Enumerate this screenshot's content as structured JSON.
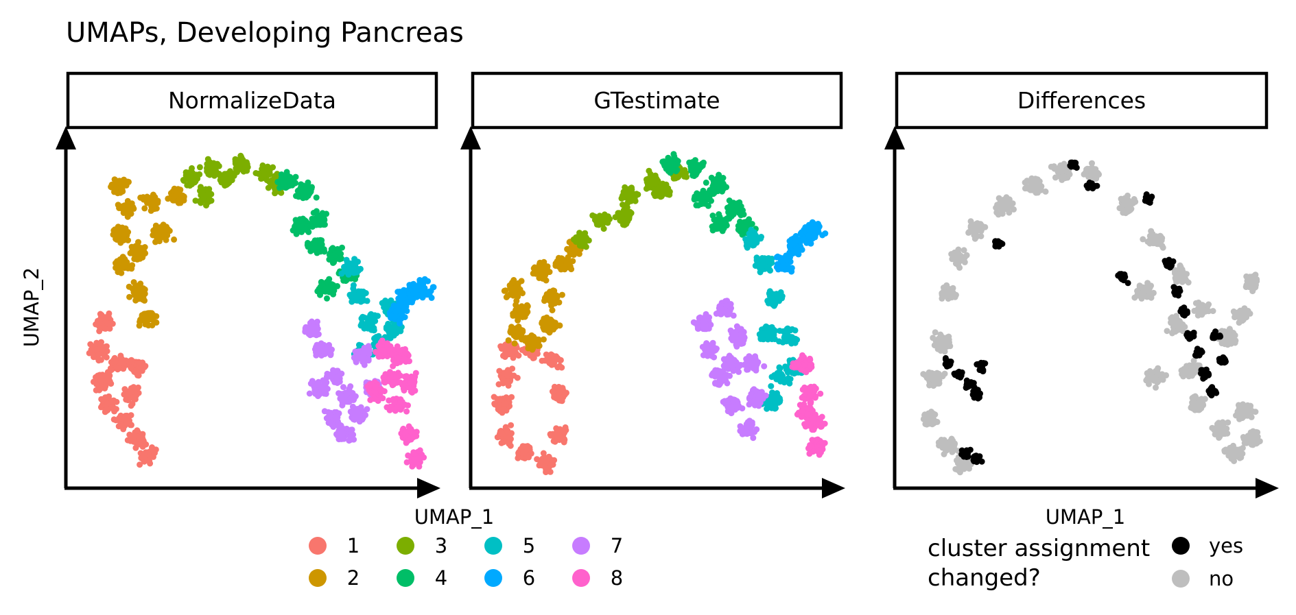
{
  "title": "UMAPs, Developing Pancreas",
  "panels": [
    {
      "label": "NormalizeData"
    },
    {
      "label": "GTestimate"
    },
    {
      "label": "Differences"
    }
  ],
  "xlabel": "UMAP_1",
  "ylabel": "UMAP_2",
  "cluster_legend": {
    "items": [
      {
        "label": "1",
        "color": "#F8766D"
      },
      {
        "label": "2",
        "color": "#CD9600"
      },
      {
        "label": "3",
        "color": "#7CAE00"
      },
      {
        "label": "4",
        "color": "#00BE67"
      },
      {
        "label": "5",
        "color": "#00BFC4"
      },
      {
        "label": "6",
        "color": "#00A9FF"
      },
      {
        "label": "7",
        "color": "#C77CFF"
      },
      {
        "label": "8",
        "color": "#FF61CC"
      }
    ]
  },
  "change_legend": {
    "title_line1": "cluster assignment",
    "title_line2": "changed?",
    "items": [
      {
        "label": "yes",
        "color": "#000000"
      },
      {
        "label": "no",
        "color": "#BEBEBE"
      }
    ]
  },
  "chart_data": {
    "type": "scatter",
    "facets": [
      "NormalizeData",
      "GTestimate",
      "Differences"
    ],
    "xlabel": "UMAP_1",
    "ylabel": "UMAP_2",
    "x_axis_ticks": false,
    "y_axis_ticks": false,
    "grid": false,
    "color_by": {
      "NormalizeData": "cluster",
      "GTestimate": "cluster",
      "Differences": "cluster assignment changed?"
    },
    "clusters": [
      "1",
      "2",
      "3",
      "4",
      "5",
      "6",
      "7",
      "8"
    ],
    "legend_position": "bottom",
    "regions": {
      "NormalizeData": {
        "1": [
          [
            0.08,
            0.46
          ],
          [
            0.06,
            0.38
          ],
          [
            0.07,
            0.29
          ],
          [
            0.09,
            0.22
          ],
          [
            0.13,
            0.17
          ],
          [
            0.17,
            0.12
          ],
          [
            0.2,
            0.07
          ],
          [
            0.15,
            0.25
          ],
          [
            0.17,
            0.33
          ],
          [
            0.12,
            0.34
          ]
        ],
        "2": [
          [
            0.12,
            0.86
          ],
          [
            0.14,
            0.79
          ],
          [
            0.12,
            0.72
          ],
          [
            0.13,
            0.63
          ],
          [
            0.17,
            0.55
          ],
          [
            0.2,
            0.47
          ],
          [
            0.24,
            0.72
          ],
          [
            0.28,
            0.83
          ],
          [
            0.21,
            0.81
          ],
          [
            0.17,
            0.66
          ]
        ],
        "3": [
          [
            0.32,
            0.88
          ],
          [
            0.38,
            0.91
          ],
          [
            0.46,
            0.92
          ],
          [
            0.53,
            0.9
          ],
          [
            0.56,
            0.86
          ],
          [
            0.42,
            0.88
          ],
          [
            0.36,
            0.83
          ]
        ],
        "4": [
          [
            0.59,
            0.87
          ],
          [
            0.64,
            0.84
          ],
          [
            0.68,
            0.76
          ],
          [
            0.72,
            0.66
          ],
          [
            0.76,
            0.6
          ],
          [
            0.63,
            0.74
          ],
          [
            0.67,
            0.68
          ],
          [
            0.7,
            0.56
          ]
        ],
        "5": [
          [
            0.77,
            0.62
          ],
          [
            0.79,
            0.54
          ],
          [
            0.82,
            0.46
          ],
          [
            0.85,
            0.4
          ],
          [
            0.8,
            0.37
          ],
          [
            0.88,
            0.5
          ],
          [
            0.89,
            0.44
          ]
        ],
        "6": [
          [
            0.92,
            0.53
          ],
          [
            0.95,
            0.55
          ],
          [
            0.97,
            0.56
          ],
          [
            0.9,
            0.49
          ]
        ],
        "7": [
          [
            0.66,
            0.44
          ],
          [
            0.69,
            0.38
          ],
          [
            0.72,
            0.3
          ],
          [
            0.76,
            0.24
          ],
          [
            0.75,
            0.14
          ],
          [
            0.79,
            0.19
          ],
          [
            0.83,
            0.27
          ],
          [
            0.8,
            0.36
          ],
          [
            0.72,
            0.18
          ],
          [
            0.68,
            0.27
          ]
        ],
        "8": [
          [
            0.86,
            0.38
          ],
          [
            0.88,
            0.3
          ],
          [
            0.9,
            0.22
          ],
          [
            0.93,
            0.13
          ],
          [
            0.95,
            0.06
          ],
          [
            0.84,
            0.26
          ],
          [
            0.91,
            0.36
          ],
          [
            0.93,
            0.28
          ]
        ]
      },
      "GTestimate": {
        "1": [
          [
            0.08,
            0.38
          ],
          [
            0.07,
            0.3
          ],
          [
            0.06,
            0.22
          ],
          [
            0.07,
            0.13
          ],
          [
            0.12,
            0.08
          ],
          [
            0.18,
            0.05
          ],
          [
            0.22,
            0.13
          ],
          [
            0.22,
            0.25
          ],
          [
            0.2,
            0.35
          ],
          [
            0.14,
            0.38
          ]
        ],
        "2": [
          [
            0.09,
            0.56
          ],
          [
            0.11,
            0.49
          ],
          [
            0.1,
            0.43
          ],
          [
            0.14,
            0.4
          ],
          [
            0.19,
            0.45
          ],
          [
            0.2,
            0.53
          ],
          [
            0.23,
            0.63
          ],
          [
            0.26,
            0.67
          ],
          [
            0.17,
            0.61
          ]
        ],
        "3": [
          [
            0.28,
            0.7
          ],
          [
            0.34,
            0.76
          ],
          [
            0.41,
            0.83
          ],
          [
            0.48,
            0.87
          ],
          [
            0.55,
            0.9
          ],
          [
            0.51,
            0.84
          ],
          [
            0.4,
            0.77
          ]
        ],
        "4": [
          [
            0.53,
            0.92
          ],
          [
            0.6,
            0.91
          ],
          [
            0.66,
            0.86
          ],
          [
            0.71,
            0.79
          ],
          [
            0.74,
            0.74
          ],
          [
            0.62,
            0.82
          ],
          [
            0.67,
            0.75
          ]
        ],
        "5": [
          [
            0.76,
            0.7
          ],
          [
            0.79,
            0.63
          ],
          [
            0.82,
            0.53
          ],
          [
            0.86,
            0.42
          ],
          [
            0.88,
            0.33
          ],
          [
            0.84,
            0.3
          ],
          [
            0.82,
            0.23
          ],
          [
            0.8,
            0.43
          ]
        ],
        "6": [
          [
            0.88,
            0.68
          ],
          [
            0.91,
            0.71
          ],
          [
            0.93,
            0.73
          ],
          [
            0.85,
            0.63
          ]
        ],
        "7": [
          [
            0.62,
            0.46
          ],
          [
            0.64,
            0.38
          ],
          [
            0.67,
            0.3
          ],
          [
            0.7,
            0.22
          ],
          [
            0.75,
            0.15
          ],
          [
            0.77,
            0.24
          ],
          [
            0.76,
            0.34
          ],
          [
            0.72,
            0.42
          ],
          [
            0.68,
            0.5
          ],
          [
            0.7,
            0.34
          ]
        ],
        "8": [
          [
            0.9,
            0.34
          ],
          [
            0.92,
            0.25
          ],
          [
            0.93,
            0.17
          ],
          [
            0.94,
            0.1
          ],
          [
            0.91,
            0.2
          ]
        ]
      },
      "Differences": {
        "no": [
          [
            0.1,
            0.4
          ],
          [
            0.08,
            0.3
          ],
          [
            0.07,
            0.18
          ],
          [
            0.12,
            0.1
          ],
          [
            0.16,
            0.05
          ],
          [
            0.12,
            0.55
          ],
          [
            0.15,
            0.65
          ],
          [
            0.2,
            0.73
          ],
          [
            0.28,
            0.8
          ],
          [
            0.36,
            0.86
          ],
          [
            0.44,
            0.9
          ],
          [
            0.52,
            0.89
          ],
          [
            0.62,
            0.8
          ],
          [
            0.7,
            0.7
          ],
          [
            0.77,
            0.6
          ],
          [
            0.83,
            0.5
          ],
          [
            0.9,
            0.42
          ],
          [
            0.94,
            0.48
          ],
          [
            0.97,
            0.58
          ],
          [
            0.76,
            0.45
          ],
          [
            0.8,
            0.32
          ],
          [
            0.82,
            0.22
          ],
          [
            0.88,
            0.15
          ],
          [
            0.92,
            0.08
          ],
          [
            0.95,
            0.2
          ],
          [
            0.97,
            0.12
          ],
          [
            0.7,
            0.3
          ],
          [
            0.67,
            0.55
          ]
        ],
        "yes": [
          [
            0.12,
            0.34
          ],
          [
            0.15,
            0.31
          ],
          [
            0.18,
            0.28
          ],
          [
            0.21,
            0.33
          ],
          [
            0.2,
            0.25
          ],
          [
            0.17,
            0.08
          ],
          [
            0.2,
            0.06
          ],
          [
            0.47,
            0.92
          ],
          [
            0.52,
            0.86
          ],
          [
            0.68,
            0.82
          ],
          [
            0.74,
            0.63
          ],
          [
            0.76,
            0.55
          ],
          [
            0.78,
            0.49
          ],
          [
            0.8,
            0.42
          ],
          [
            0.82,
            0.37
          ],
          [
            0.84,
            0.31
          ],
          [
            0.86,
            0.26
          ],
          [
            0.87,
            0.42
          ],
          [
            0.89,
            0.35
          ],
          [
            0.26,
            0.69
          ],
          [
            0.61,
            0.59
          ]
        ]
      }
    }
  }
}
